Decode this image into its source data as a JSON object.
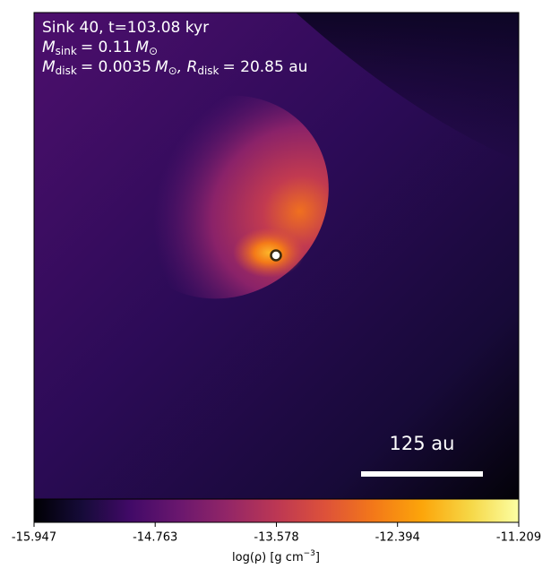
{
  "chart_data": {
    "type": "image",
    "title": "Sink 40, t=103.08 kyr",
    "sink_mass": {
      "symbol": "M",
      "sub": "sink",
      "value": "= 0.11",
      "unit": "M",
      "unit_sub": "⊙"
    },
    "disk_mass": {
      "symbol": "M",
      "sub": "disk",
      "value": "= 0.0035",
      "unit": "M",
      "unit_sub": "⊙"
    },
    "disk_radius": {
      "symbol": ", R",
      "sub": "disk",
      "value": "= 20.85 au"
    },
    "scale_bar_label": "125 au",
    "colormap": "inferno",
    "clim": [
      -15.947,
      -11.209
    ],
    "cticks": [
      -15.947,
      -14.763,
      -13.578,
      -12.394,
      -11.209
    ],
    "colorbar_label": {
      "text": "log(ρ) [g cm",
      "sup": "−3",
      "end": "]"
    }
  }
}
